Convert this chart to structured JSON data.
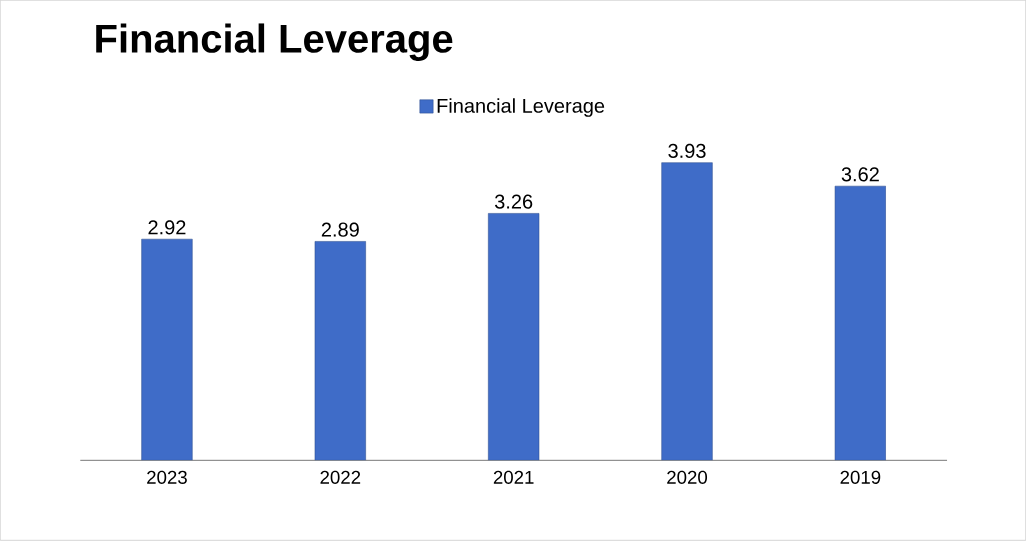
{
  "chart_data": {
    "type": "bar",
    "title": "Financial Leverage",
    "categories": [
      "2023",
      "2022",
      "2021",
      "2020",
      "2019"
    ],
    "series": [
      {
        "name": "Financial Leverage",
        "color": "#3f6cc8",
        "values": [
          2.92,
          2.89,
          3.26,
          3.93,
          3.62
        ]
      }
    ],
    "data_labels": true,
    "legend": "top"
  }
}
